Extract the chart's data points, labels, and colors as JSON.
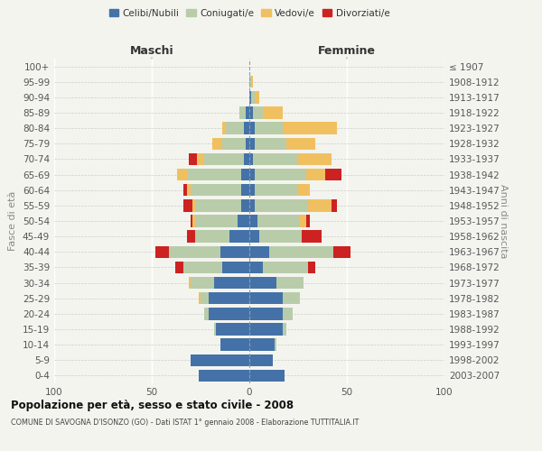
{
  "age_groups": [
    "0-4",
    "5-9",
    "10-14",
    "15-19",
    "20-24",
    "25-29",
    "30-34",
    "35-39",
    "40-44",
    "45-49",
    "50-54",
    "55-59",
    "60-64",
    "65-69",
    "70-74",
    "75-79",
    "80-84",
    "85-89",
    "90-94",
    "95-99",
    "100+"
  ],
  "birth_years": [
    "2003-2007",
    "1998-2002",
    "1993-1997",
    "1988-1992",
    "1983-1987",
    "1978-1982",
    "1973-1977",
    "1968-1972",
    "1963-1967",
    "1958-1962",
    "1953-1957",
    "1948-1952",
    "1943-1947",
    "1938-1942",
    "1933-1937",
    "1928-1932",
    "1923-1927",
    "1918-1922",
    "1913-1917",
    "1908-1912",
    "≤ 1907"
  ],
  "maschi_celibi": [
    26,
    30,
    15,
    17,
    21,
    21,
    18,
    14,
    15,
    10,
    6,
    4,
    4,
    4,
    3,
    2,
    3,
    2,
    0,
    0,
    0
  ],
  "maschi_coniugati": [
    0,
    0,
    0,
    1,
    2,
    4,
    12,
    20,
    26,
    18,
    22,
    24,
    26,
    28,
    20,
    12,
    9,
    3,
    0,
    0,
    0
  ],
  "maschi_vedovi": [
    0,
    0,
    0,
    0,
    0,
    1,
    1,
    0,
    0,
    0,
    1,
    1,
    2,
    5,
    4,
    5,
    2,
    0,
    0,
    0,
    0
  ],
  "maschi_divorziati": [
    0,
    0,
    0,
    0,
    0,
    0,
    0,
    4,
    7,
    4,
    1,
    5,
    2,
    0,
    4,
    0,
    0,
    0,
    0,
    0,
    0
  ],
  "femmine_nubili": [
    18,
    12,
    13,
    17,
    17,
    17,
    14,
    7,
    10,
    5,
    4,
    3,
    3,
    3,
    2,
    3,
    3,
    2,
    1,
    0,
    0
  ],
  "femmine_coniugate": [
    0,
    0,
    1,
    2,
    5,
    9,
    14,
    23,
    33,
    22,
    22,
    27,
    22,
    26,
    23,
    16,
    14,
    5,
    2,
    1,
    0
  ],
  "femmine_vedove": [
    0,
    0,
    0,
    0,
    0,
    0,
    0,
    0,
    0,
    0,
    3,
    12,
    6,
    10,
    17,
    15,
    28,
    10,
    2,
    1,
    0
  ],
  "femmine_divorziate": [
    0,
    0,
    0,
    0,
    0,
    0,
    0,
    4,
    9,
    10,
    2,
    3,
    0,
    8,
    0,
    0,
    0,
    0,
    0,
    0,
    0
  ],
  "color_celibi": "#4472a8",
  "color_coniugati": "#b8ccaa",
  "color_vedovi": "#f0c060",
  "color_divorziati": "#cc2222",
  "xlim": 100,
  "title": "Popolazione per età, sesso e stato civile - 2008",
  "subtitle": "COMUNE DI SAVOGNA D'ISONZO (GO) - Dati ISTAT 1° gennaio 2008 - Elaborazione TUTTITALIA.IT",
  "ylabel_left": "Fasce di età",
  "ylabel_right": "Anni di nascita",
  "label_maschi": "Maschi",
  "label_femmine": "Femmine",
  "legend_labels": [
    "Celibi/Nubili",
    "Coniugati/e",
    "Vedovi/e",
    "Divorziati/e"
  ],
  "bg_color": "#f4f4ef",
  "bar_height": 0.78
}
